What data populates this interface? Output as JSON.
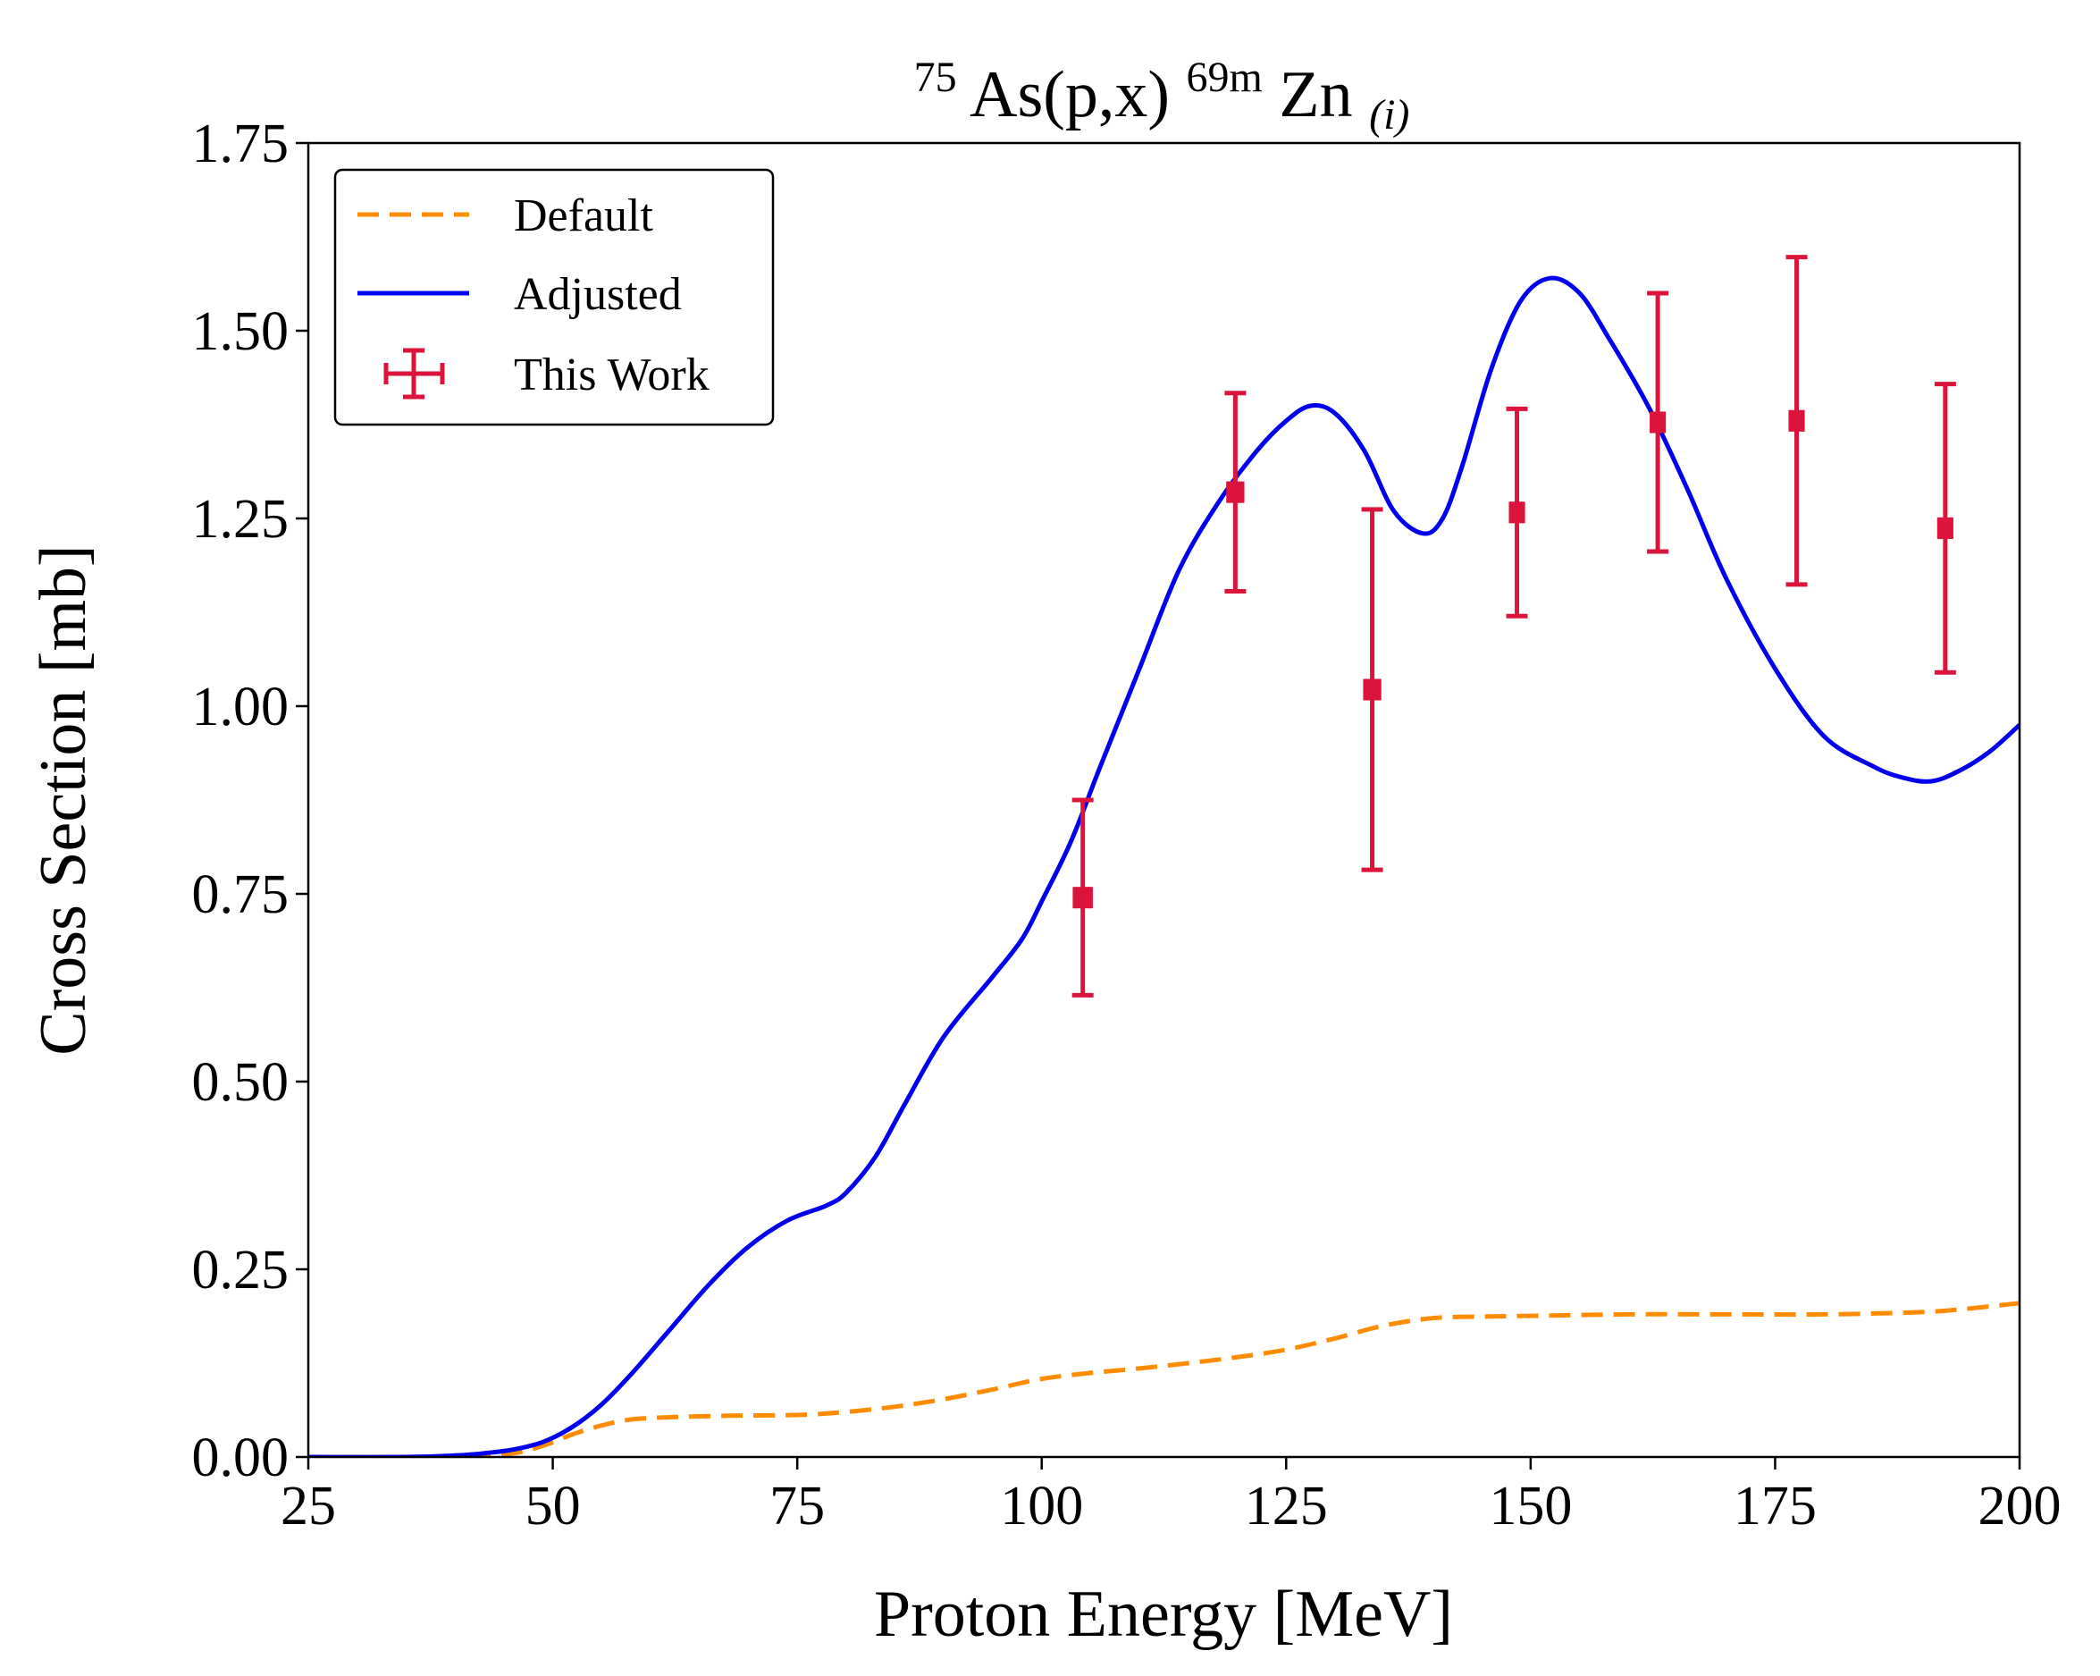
{
  "chart_data": {
    "type": "line",
    "title": {
      "mass_number": "75",
      "element_target": "As(p,x)",
      "product_mass": "69m",
      "element_product": "Zn",
      "subscript": "(i)"
    },
    "xlabel": "Proton Energy [MeV]",
    "ylabel": "Cross Section [mb]",
    "xlim": [
      25,
      200
    ],
    "ylim": [
      0,
      1.75
    ],
    "xticks": [
      25,
      50,
      75,
      100,
      125,
      150,
      175,
      200
    ],
    "xtick_labels": [
      "25",
      "50",
      "75",
      "100",
      "125",
      "150",
      "175",
      "200"
    ],
    "yticks": [
      0,
      0.25,
      0.5,
      0.75,
      1.0,
      1.25,
      1.5,
      1.75
    ],
    "ytick_labels": [
      "0.00",
      "0.25",
      "0.50",
      "0.75",
      "1.00",
      "1.25",
      "1.50",
      "1.75"
    ],
    "grid": false,
    "legend_position": "top-left",
    "series": [
      {
        "name": "Default",
        "style": "dashed",
        "color": "#ff8c00",
        "x": [
          25,
          35,
          42,
          46,
          49,
          52,
          55,
          58,
          62,
          68,
          75,
          80,
          85,
          90,
          95,
          100,
          105,
          110,
          115,
          120,
          125,
          130,
          135,
          140,
          145,
          150,
          160,
          170,
          180,
          190,
          195,
          200
        ],
        "y": [
          0,
          0,
          0.001,
          0.005,
          0.015,
          0.03,
          0.042,
          0.05,
          0.053,
          0.055,
          0.056,
          0.06,
          0.067,
          0.077,
          0.09,
          0.104,
          0.112,
          0.118,
          0.125,
          0.133,
          0.143,
          0.158,
          0.175,
          0.185,
          0.187,
          0.188,
          0.19,
          0.19,
          0.19,
          0.193,
          0.198,
          0.205
        ]
      },
      {
        "name": "Adjusted",
        "style": "solid",
        "color": "#0000ee",
        "x": [
          25,
          35,
          40,
          43,
          46,
          49,
          52,
          55,
          58,
          62,
          66,
          70,
          74,
          78,
          80,
          83,
          86,
          90,
          95,
          98,
          100,
          103,
          106,
          110,
          114,
          118,
          122,
          125,
          127.5,
          130,
          133,
          136,
          139,
          141,
          143,
          146,
          149,
          152,
          155,
          158,
          162,
          166,
          170,
          175,
          180,
          185,
          188,
          191,
          194,
          197,
          200
        ],
        "y": [
          0,
          0,
          0.002,
          0.005,
          0.01,
          0.02,
          0.04,
          0.07,
          0.11,
          0.17,
          0.23,
          0.28,
          0.315,
          0.335,
          0.352,
          0.4,
          0.47,
          0.56,
          0.64,
          0.69,
          0.74,
          0.82,
          0.92,
          1.05,
          1.18,
          1.27,
          1.34,
          1.38,
          1.4,
          1.39,
          1.34,
          1.26,
          1.23,
          1.25,
          1.32,
          1.45,
          1.54,
          1.57,
          1.55,
          1.49,
          1.4,
          1.29,
          1.17,
          1.05,
          0.96,
          0.92,
          0.905,
          0.9,
          0.915,
          0.94,
          0.975
        ]
      },
      {
        "name": "This Work",
        "style": "errorbar",
        "color": "#dc143c",
        "x": [
          104.2,
          119.8,
          133.8,
          148.6,
          163.0,
          177.2,
          192.4
        ],
        "y": [
          0.745,
          1.285,
          1.022,
          1.258,
          1.378,
          1.38,
          1.237
        ],
        "xerr": [
          0.8,
          0.7,
          0.7,
          0.6,
          0.6,
          0.6,
          0.6
        ],
        "yerr": [
          0.13,
          0.132,
          0.24,
          0.138,
          0.172,
          0.218,
          0.192
        ]
      }
    ]
  }
}
